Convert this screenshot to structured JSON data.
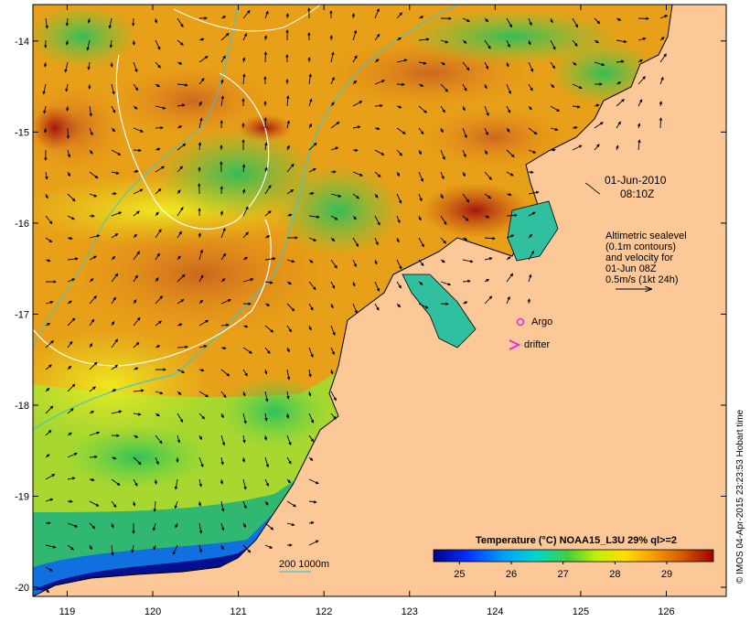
{
  "map": {
    "lon_ticks": [
      "119",
      "120",
      "121",
      "122",
      "123",
      "124",
      "125",
      "126"
    ],
    "lat_ticks": [
      "-14",
      "-15",
      "-16",
      "-17",
      "-18",
      "-19",
      "-20"
    ],
    "lon_range": [
      118.6,
      126.7
    ],
    "lat_range": [
      -20.1,
      -13.6
    ]
  },
  "annotations": {
    "date": "01-Jun-2010",
    "time": "08:10Z",
    "legend_lines": [
      "Altimetric sealevel",
      "(0.1m contours)",
      "and velocity for",
      "01-Jun 08Z",
      "0.5m/s (1kt 24h)"
    ],
    "argo_label": "Argo",
    "drifter_label": "drifter",
    "bathy_label": "200  1000m"
  },
  "colorbar": {
    "title": "Temperature (°C) NOAA15_L3U 29% ql>=2",
    "tick_labels": [
      "25",
      "26",
      "27",
      "28",
      "29"
    ],
    "tick_values": [
      25,
      26,
      27,
      28,
      29
    ],
    "range": [
      24.5,
      29.9
    ]
  },
  "credit": "© IMOS 04-Apr-2015 23:23:53 Hobart time",
  "colors": {
    "land": "#fcc898",
    "argo": "#e030e0",
    "drifter": "#e030e0",
    "isobath_200": "#40c8c8"
  }
}
